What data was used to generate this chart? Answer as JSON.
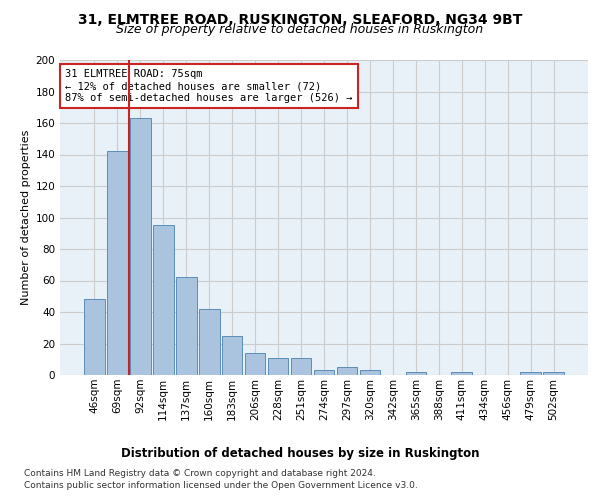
{
  "title1": "31, ELMTREE ROAD, RUSKINGTON, SLEAFORD, NG34 9BT",
  "title2": "Size of property relative to detached houses in Ruskington",
  "xlabel": "Distribution of detached houses by size in Ruskington",
  "ylabel": "Number of detached properties",
  "categories": [
    "46sqm",
    "69sqm",
    "92sqm",
    "114sqm",
    "137sqm",
    "160sqm",
    "183sqm",
    "206sqm",
    "228sqm",
    "251sqm",
    "274sqm",
    "297sqm",
    "320sqm",
    "342sqm",
    "365sqm",
    "388sqm",
    "411sqm",
    "434sqm",
    "456sqm",
    "479sqm",
    "502sqm"
  ],
  "values": [
    48,
    142,
    163,
    95,
    62,
    42,
    25,
    14,
    11,
    11,
    3,
    5,
    3,
    0,
    2,
    0,
    2,
    0,
    0,
    2,
    2
  ],
  "bar_color": "#aac4e0",
  "bar_edge_color": "#5b8db8",
  "vline_x": 1.5,
  "vline_color": "#cc2222",
  "annotation_text": "31 ELMTREE ROAD: 75sqm\n← 12% of detached houses are smaller (72)\n87% of semi-detached houses are larger (526) →",
  "annotation_box_color": "#ffffff",
  "annotation_border_color": "#cc2222",
  "ylim": [
    0,
    200
  ],
  "yticks": [
    0,
    20,
    40,
    60,
    80,
    100,
    120,
    140,
    160,
    180,
    200
  ],
  "grid_color": "#cccccc",
  "bg_color": "#e8f0f8",
  "footer1": "Contains HM Land Registry data © Crown copyright and database right 2024.",
  "footer2": "Contains public sector information licensed under the Open Government Licence v3.0.",
  "title1_fontsize": 10,
  "title2_fontsize": 9,
  "xlabel_fontsize": 8.5,
  "ylabel_fontsize": 8,
  "tick_fontsize": 7.5,
  "annotation_fontsize": 7.5,
  "footer_fontsize": 6.5
}
